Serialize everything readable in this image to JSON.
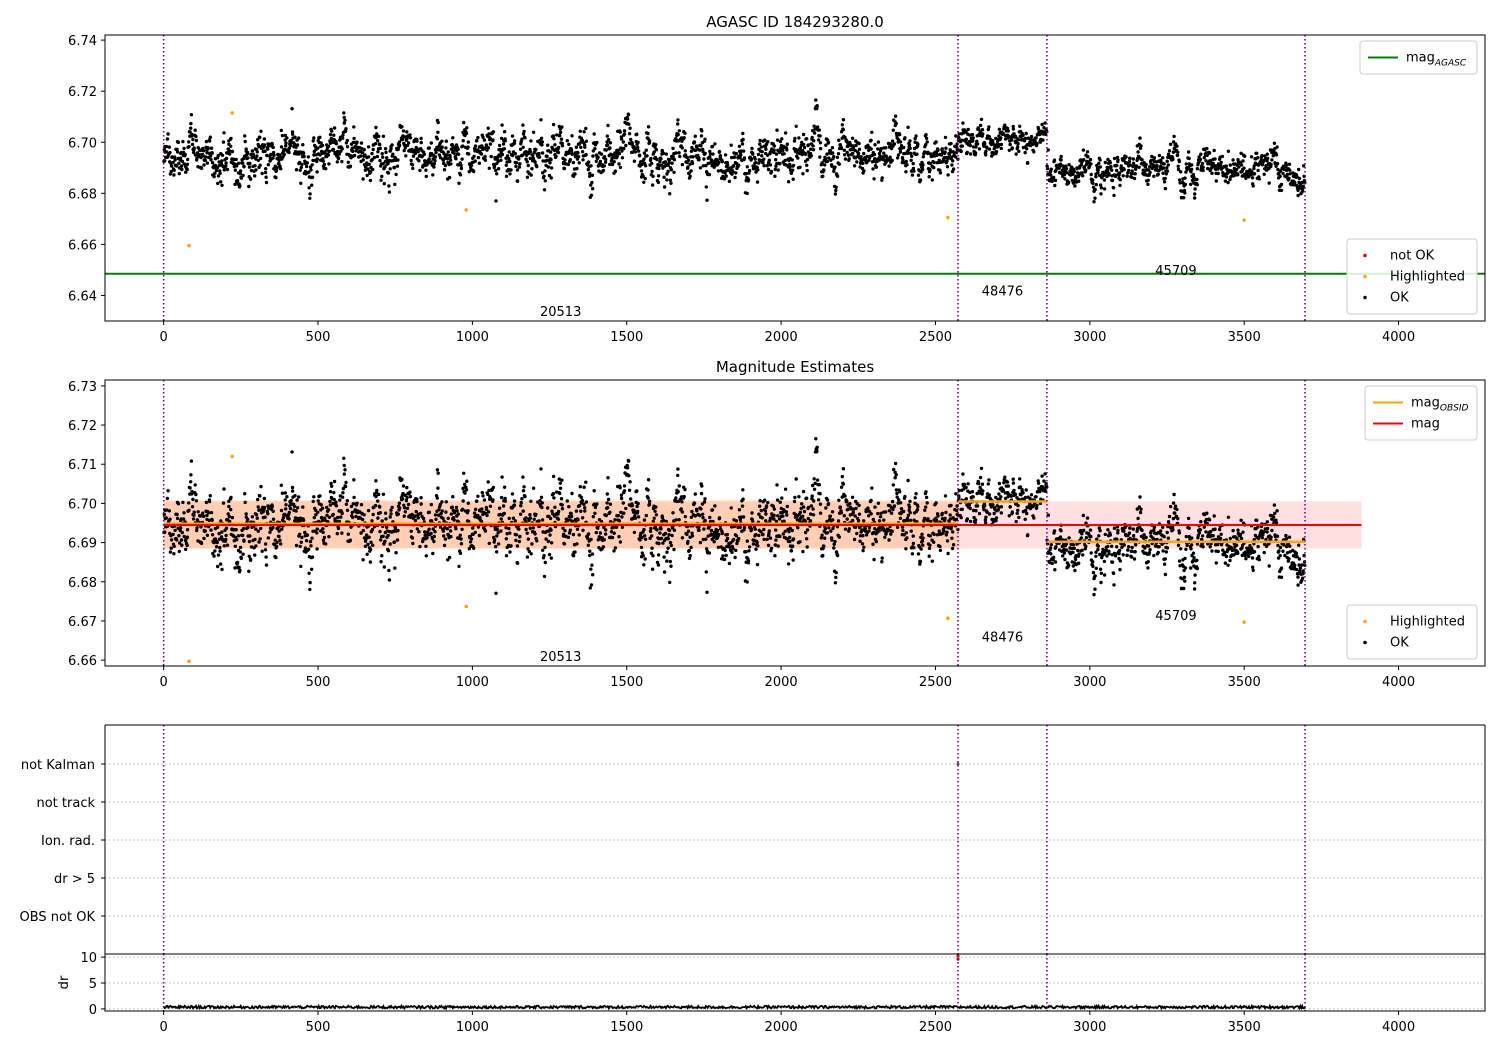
{
  "chart_data": [
    {
      "id": "top",
      "type": "scatter",
      "title": "AGASC ID 184293280.0",
      "xlim": [
        -190,
        4280
      ],
      "ylim": [
        6.63,
        6.742
      ],
      "xticks": [
        0,
        500,
        1000,
        1500,
        2000,
        2500,
        3000,
        3500,
        4000
      ],
      "yticks": [
        6.64,
        6.66,
        6.68,
        6.7,
        6.72,
        6.74
      ],
      "ytick_labels": [
        "6.64",
        "6.66",
        "6.68",
        "6.70",
        "6.72",
        "6.74"
      ],
      "grid": false,
      "vlines": [
        0,
        2573,
        2861,
        3697
      ],
      "obsid_labels": [
        {
          "text": "20513",
          "x": 1286,
          "y": 6.634
        },
        {
          "text": "48476",
          "x": 2717,
          "y": 6.642
        },
        {
          "text": "45709",
          "x": 3279,
          "y": 6.65
        }
      ],
      "hlines": [
        {
          "name": "mag_AGASC",
          "y": 6.6485,
          "color": "#008000",
          "from": -190,
          "to": 4280
        }
      ],
      "scatter_segments": [
        {
          "x0": 0,
          "x1": 2573,
          "center": 6.695,
          "spread": 0.0075
        },
        {
          "x0": 2573,
          "x1": 2861,
          "center": 6.701,
          "spread": 0.005
        },
        {
          "x0": 2861,
          "x1": 3697,
          "center": 6.689,
          "spread": 0.0055
        }
      ],
      "highlighted_points": [
        [
          82,
          6.6595
        ],
        [
          222,
          6.7115
        ],
        [
          980,
          6.6735
        ],
        [
          2540,
          6.6705
        ],
        [
          3500,
          6.6695
        ]
      ],
      "legends": [
        {
          "position": "top-right",
          "items": [
            {
              "kind": "line",
              "color": "#008000",
              "label": "mag",
              "sub": "AGASC"
            }
          ]
        },
        {
          "position": "bottom-right",
          "items": [
            {
              "kind": "dot",
              "color": "#ff0000",
              "label": "not OK"
            },
            {
              "kind": "dot",
              "color": "#ffa500",
              "label": "Highlighted"
            },
            {
              "kind": "dot",
              "color": "#000000",
              "label": "OK"
            }
          ]
        }
      ]
    },
    {
      "id": "middle",
      "type": "scatter",
      "title": "Magnitude Estimates",
      "xlim": [
        -190,
        4280
      ],
      "ylim": [
        6.6585,
        6.7315
      ],
      "xticks": [
        0,
        500,
        1000,
        1500,
        2000,
        2500,
        3000,
        3500,
        4000
      ],
      "yticks": [
        6.66,
        6.67,
        6.68,
        6.69,
        6.7,
        6.71,
        6.72,
        6.73
      ],
      "ytick_labels": [
        "6.66",
        "6.67",
        "6.68",
        "6.69",
        "6.70",
        "6.71",
        "6.72",
        "6.73"
      ],
      "grid": false,
      "vlines": [
        0,
        2573,
        2861,
        3697
      ],
      "obsid_labels": [
        {
          "text": "20513",
          "x": 1286,
          "y": 6.661
        },
        {
          "text": "48476",
          "x": 2717,
          "y": 6.666
        },
        {
          "text": "45709",
          "x": 3279,
          "y": 6.6715
        }
      ],
      "mag_line": {
        "y": 6.6945,
        "x0": 0,
        "x1": 3880,
        "color": "#ff0000",
        "band": [
          6.6885,
          6.7005
        ]
      },
      "obsid_lines": [
        {
          "x0": 0,
          "x1": 2573,
          "y": 6.6948,
          "band": [
            6.6885,
            6.7008
          ]
        },
        {
          "x0": 2573,
          "x1": 2861,
          "y": 6.7005
        },
        {
          "x0": 2861,
          "x1": 3697,
          "y": 6.6902
        }
      ],
      "scatter_segments": [
        {
          "x0": 0,
          "x1": 2573,
          "center": 6.695,
          "spread": 0.0075
        },
        {
          "x0": 2573,
          "x1": 2861,
          "center": 6.701,
          "spread": 0.005
        },
        {
          "x0": 2861,
          "x1": 3697,
          "center": 6.689,
          "spread": 0.0055
        }
      ],
      "highlighted_points": [
        [
          82,
          6.6597
        ],
        [
          222,
          6.712
        ],
        [
          980,
          6.6737
        ],
        [
          2540,
          6.6707
        ],
        [
          3500,
          6.6697
        ]
      ],
      "legends": [
        {
          "position": "top-right",
          "items": [
            {
              "kind": "line",
              "color": "#ffa500",
              "label": "mag",
              "sub": "OBSID"
            },
            {
              "kind": "line",
              "color": "#ff0000",
              "label": "mag"
            }
          ]
        },
        {
          "position": "bottom-right",
          "items": [
            {
              "kind": "dot",
              "color": "#ffa500",
              "label": "Highlighted"
            },
            {
              "kind": "dot",
              "color": "#000000",
              "label": "OK"
            }
          ]
        }
      ]
    },
    {
      "id": "flags",
      "type": "scatter",
      "xlim": [
        -190,
        4280
      ],
      "categories": [
        "not Kalman",
        "not track",
        "Ion. rad.",
        "dr > 5",
        "OBS not OK"
      ],
      "grid": true,
      "vlines": [
        0,
        2573,
        2861,
        3697
      ],
      "flagged_points": [
        {
          "x": 2573,
          "category": "not Kalman"
        }
      ]
    },
    {
      "id": "dr",
      "type": "line",
      "xlim": [
        -190,
        4280
      ],
      "ylim": [
        -0.4,
        10.6
      ],
      "ylabel": "dr",
      "xticks": [
        0,
        500,
        1000,
        1500,
        2000,
        2500,
        3000,
        3500,
        4000
      ],
      "yticks": [
        0,
        5,
        10
      ],
      "ytick_labels": [
        "0",
        "5",
        "10"
      ],
      "grid": true,
      "vlines": [
        0,
        2573,
        2861,
        3697
      ],
      "trace": {
        "x0": 0,
        "x1": 3697,
        "mean": 0.35,
        "spread": 0.25
      },
      "red_points": [
        [
          2573,
          9.6
        ],
        [
          2573,
          10.2
        ]
      ]
    }
  ]
}
